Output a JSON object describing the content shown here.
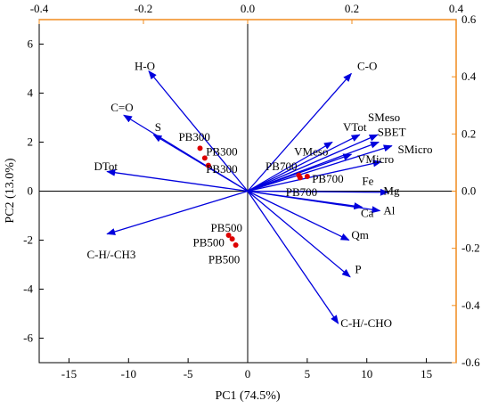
{
  "colors": {
    "vector": "#0000dd",
    "point": "#dd0000",
    "secondary_axis": "#f08c1e",
    "primary_axis": "#000000"
  },
  "chart_data": {
    "type": "scatter",
    "title": "",
    "xlabel": "PC1 (74.5%)",
    "ylabel": "PC2 (13.0%)",
    "xlim": [
      -17.5,
      17.5
    ],
    "ylim": [
      -7,
      7
    ],
    "xticks": [
      -15,
      -10,
      -5,
      0,
      5,
      10,
      15
    ],
    "yticks": [
      -6,
      -4,
      -2,
      0,
      2,
      4,
      6
    ],
    "secondary_xlim": [
      -0.4,
      0.4
    ],
    "secondary_ylim": [
      -0.6,
      0.6
    ],
    "secondary_xticks": [
      -0.4,
      -0.2,
      0.0,
      0.2,
      0.4
    ],
    "secondary_xtick_labels": [
      "-0.4",
      "-0.2",
      "0.0",
      "0.2",
      "0.4"
    ],
    "secondary_yticks": [
      -0.6,
      -0.4,
      -0.2,
      0.0,
      0.2,
      0.4,
      0.6
    ],
    "secondary_ytick_labels": [
      "-0.6",
      "-0.4",
      "-0.2",
      "0.0",
      "0.2",
      "0.4",
      "0.6"
    ],
    "points": [
      {
        "label": "PB300",
        "x": -4.0,
        "y": 1.75
      },
      {
        "label": "PB300",
        "x": -3.6,
        "y": 1.35
      },
      {
        "label": "PB300",
        "x": -3.3,
        "y": 1.05
      },
      {
        "label": "PB700",
        "x": 4.3,
        "y": 0.65
      },
      {
        "label": "PB700",
        "x": 5.0,
        "y": 0.6
      },
      {
        "label": "PB700",
        "x": 4.4,
        "y": 0.55
      },
      {
        "label": "PB500",
        "x": -1.6,
        "y": -1.8
      },
      {
        "label": "PB500",
        "x": -1.3,
        "y": -1.95
      },
      {
        "label": "PB500",
        "x": -1.0,
        "y": -2.2
      }
    ],
    "point_labels": [
      {
        "text": "PB300",
        "x": -5.8,
        "y": 2.2
      },
      {
        "text": "PB300",
        "x": -3.5,
        "y": 1.6
      },
      {
        "text": "PB300",
        "x": -3.5,
        "y": 0.9
      },
      {
        "text": "PB700",
        "x": 1.5,
        "y": 1.0
      },
      {
        "text": "PB700",
        "x": 5.4,
        "y": 0.5
      },
      {
        "text": "PB700",
        "x": 3.2,
        "y": -0.05
      },
      {
        "text": "PB500",
        "x": -3.1,
        "y": -1.5
      },
      {
        "text": "PB500",
        "x": -4.6,
        "y": -2.1
      },
      {
        "text": "PB500",
        "x": -3.3,
        "y": -2.8
      }
    ],
    "loadings": [
      {
        "label": "H-O",
        "x": -8.3,
        "y": 4.9,
        "lx": -9.5,
        "ly": 5.1
      },
      {
        "label": "C-O",
        "x": 8.7,
        "y": 4.8,
        "lx": 9.2,
        "ly": 5.1
      },
      {
        "label": "C=O",
        "x": -10.4,
        "y": 3.1,
        "lx": -11.5,
        "ly": 3.4
      },
      {
        "label": "S",
        "x": -7.9,
        "y": 2.3,
        "lx": -7.8,
        "ly": 2.6
      },
      {
        "label": "VTot",
        "x": 9.4,
        "y": 2.3,
        "lx": 8.0,
        "ly": 2.6
      },
      {
        "label": "SMeso",
        "x": 10.9,
        "y": 2.3,
        "lx": 10.1,
        "ly": 3.0
      },
      {
        "label": "SBET",
        "x": 11.0,
        "y": 2.0,
        "lx": 10.9,
        "ly": 2.4
      },
      {
        "label": "SMicro",
        "x": 12.1,
        "y": 1.85,
        "lx": 12.6,
        "ly": 1.7
      },
      {
        "label": "VMeso",
        "x": 7.1,
        "y": 2.0,
        "lx": 3.9,
        "ly": 1.6
      },
      {
        "label": "VMicro",
        "x": 8.7,
        "y": 1.5,
        "lx": 9.2,
        "ly": 1.3
      },
      {
        "label": "DTot",
        "x": -11.8,
        "y": 0.8,
        "lx": -12.9,
        "ly": 1.0
      },
      {
        "label": "Fe",
        "x": 11.2,
        "y": 1.2,
        "lx": 9.6,
        "ly": 0.4
      },
      {
        "label": "Mg",
        "x": 11.8,
        "y": -0.05,
        "lx": 11.4,
        "ly": 0.0
      },
      {
        "label": "Ca",
        "x": 9.6,
        "y": -0.65,
        "lx": 9.5,
        "ly": -0.9
      },
      {
        "label": "Al",
        "x": 11.1,
        "y": -0.8,
        "lx": 11.4,
        "ly": -0.8
      },
      {
        "label": "C-H/-CH3",
        "x": -11.8,
        "y": -1.75,
        "lx": -13.5,
        "ly": -2.6
      },
      {
        "label": "Qm",
        "x": 8.5,
        "y": -2.0,
        "lx": 8.7,
        "ly": -1.8
      },
      {
        "label": "P",
        "x": 8.6,
        "y": -3.5,
        "lx": 9.0,
        "ly": -3.2
      },
      {
        "label": "C-H/-CHO",
        "x": 7.6,
        "y": -5.4,
        "lx": 7.8,
        "ly": -5.4
      }
    ]
  }
}
